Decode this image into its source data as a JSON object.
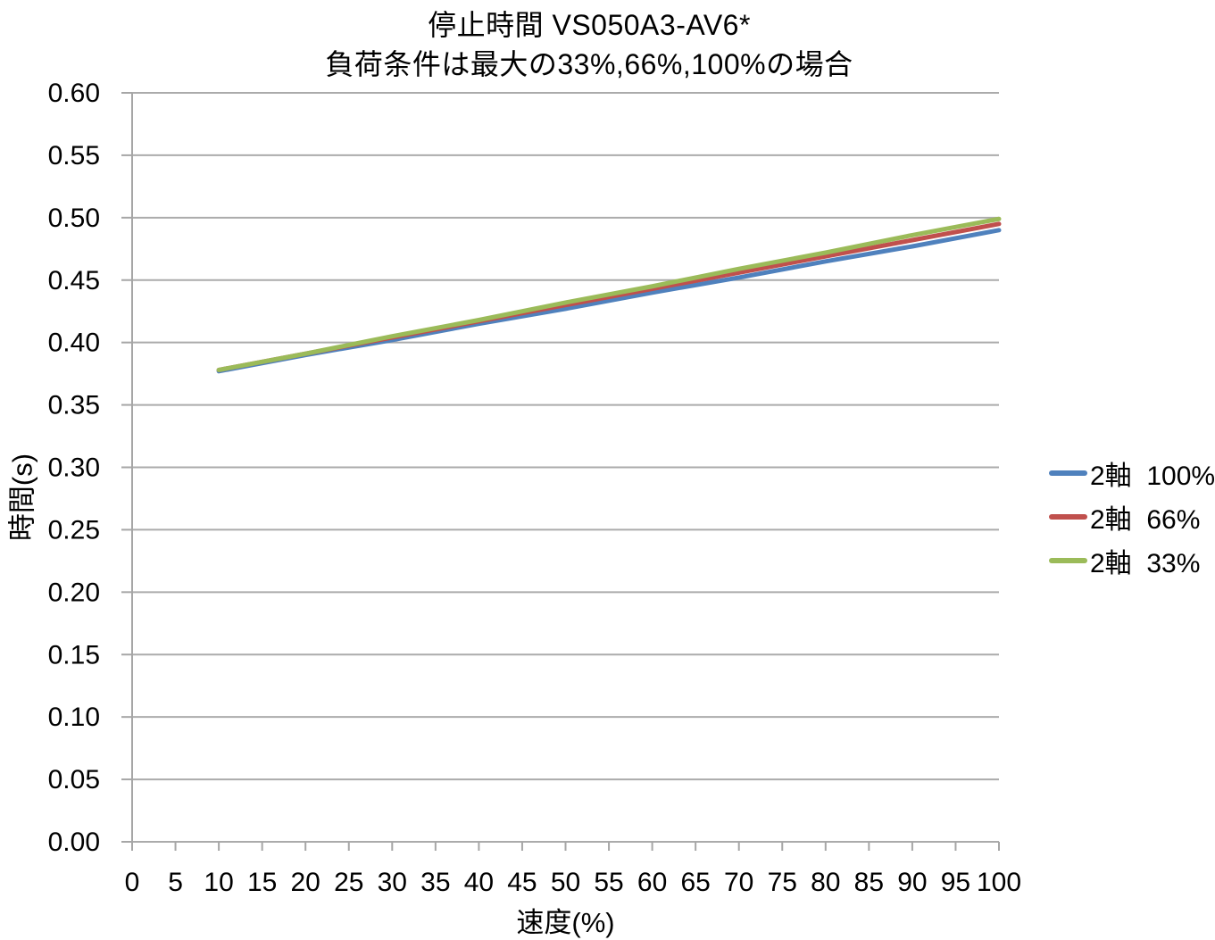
{
  "page": {
    "background": "#ffffff"
  },
  "chart_data": {
    "type": "line",
    "title_line1": "停止時間 VS050A3-AV6*",
    "title_line2": "負荷条件は最大の33%,66%,100%の場合",
    "xlabel": "速度(%)",
    "ylabel": "時間(s)",
    "xlim": [
      0,
      100
    ],
    "ylim": [
      0,
      0.6
    ],
    "xtick_step": 5,
    "ytick_step": 0.05,
    "ytick_decimals": 2,
    "grid": "horizontal",
    "legend_position": "right",
    "axis_color": "#A6A6A6",
    "gridline_color": "#ABABAB",
    "line_width": 5,
    "x": [
      10,
      20,
      30,
      40,
      50,
      60,
      70,
      80,
      90,
      100
    ],
    "series": [
      {
        "name": "2軸  100%",
        "color": "#4F81BD",
        "values": [
          0.377,
          0.39,
          0.402,
          0.415,
          0.427,
          0.44,
          0.452,
          0.465,
          0.477,
          0.49
        ]
      },
      {
        "name": "2軸  66%",
        "color": "#C0504D",
        "values": [
          0.378,
          0.391,
          0.404,
          0.417,
          0.43,
          0.443,
          0.456,
          0.469,
          0.482,
          0.495
        ]
      },
      {
        "name": "2軸  33%",
        "color": "#9BBB59",
        "values": [
          0.378,
          0.391,
          0.405,
          0.418,
          0.432,
          0.445,
          0.459,
          0.472,
          0.486,
          0.499
        ]
      }
    ]
  }
}
